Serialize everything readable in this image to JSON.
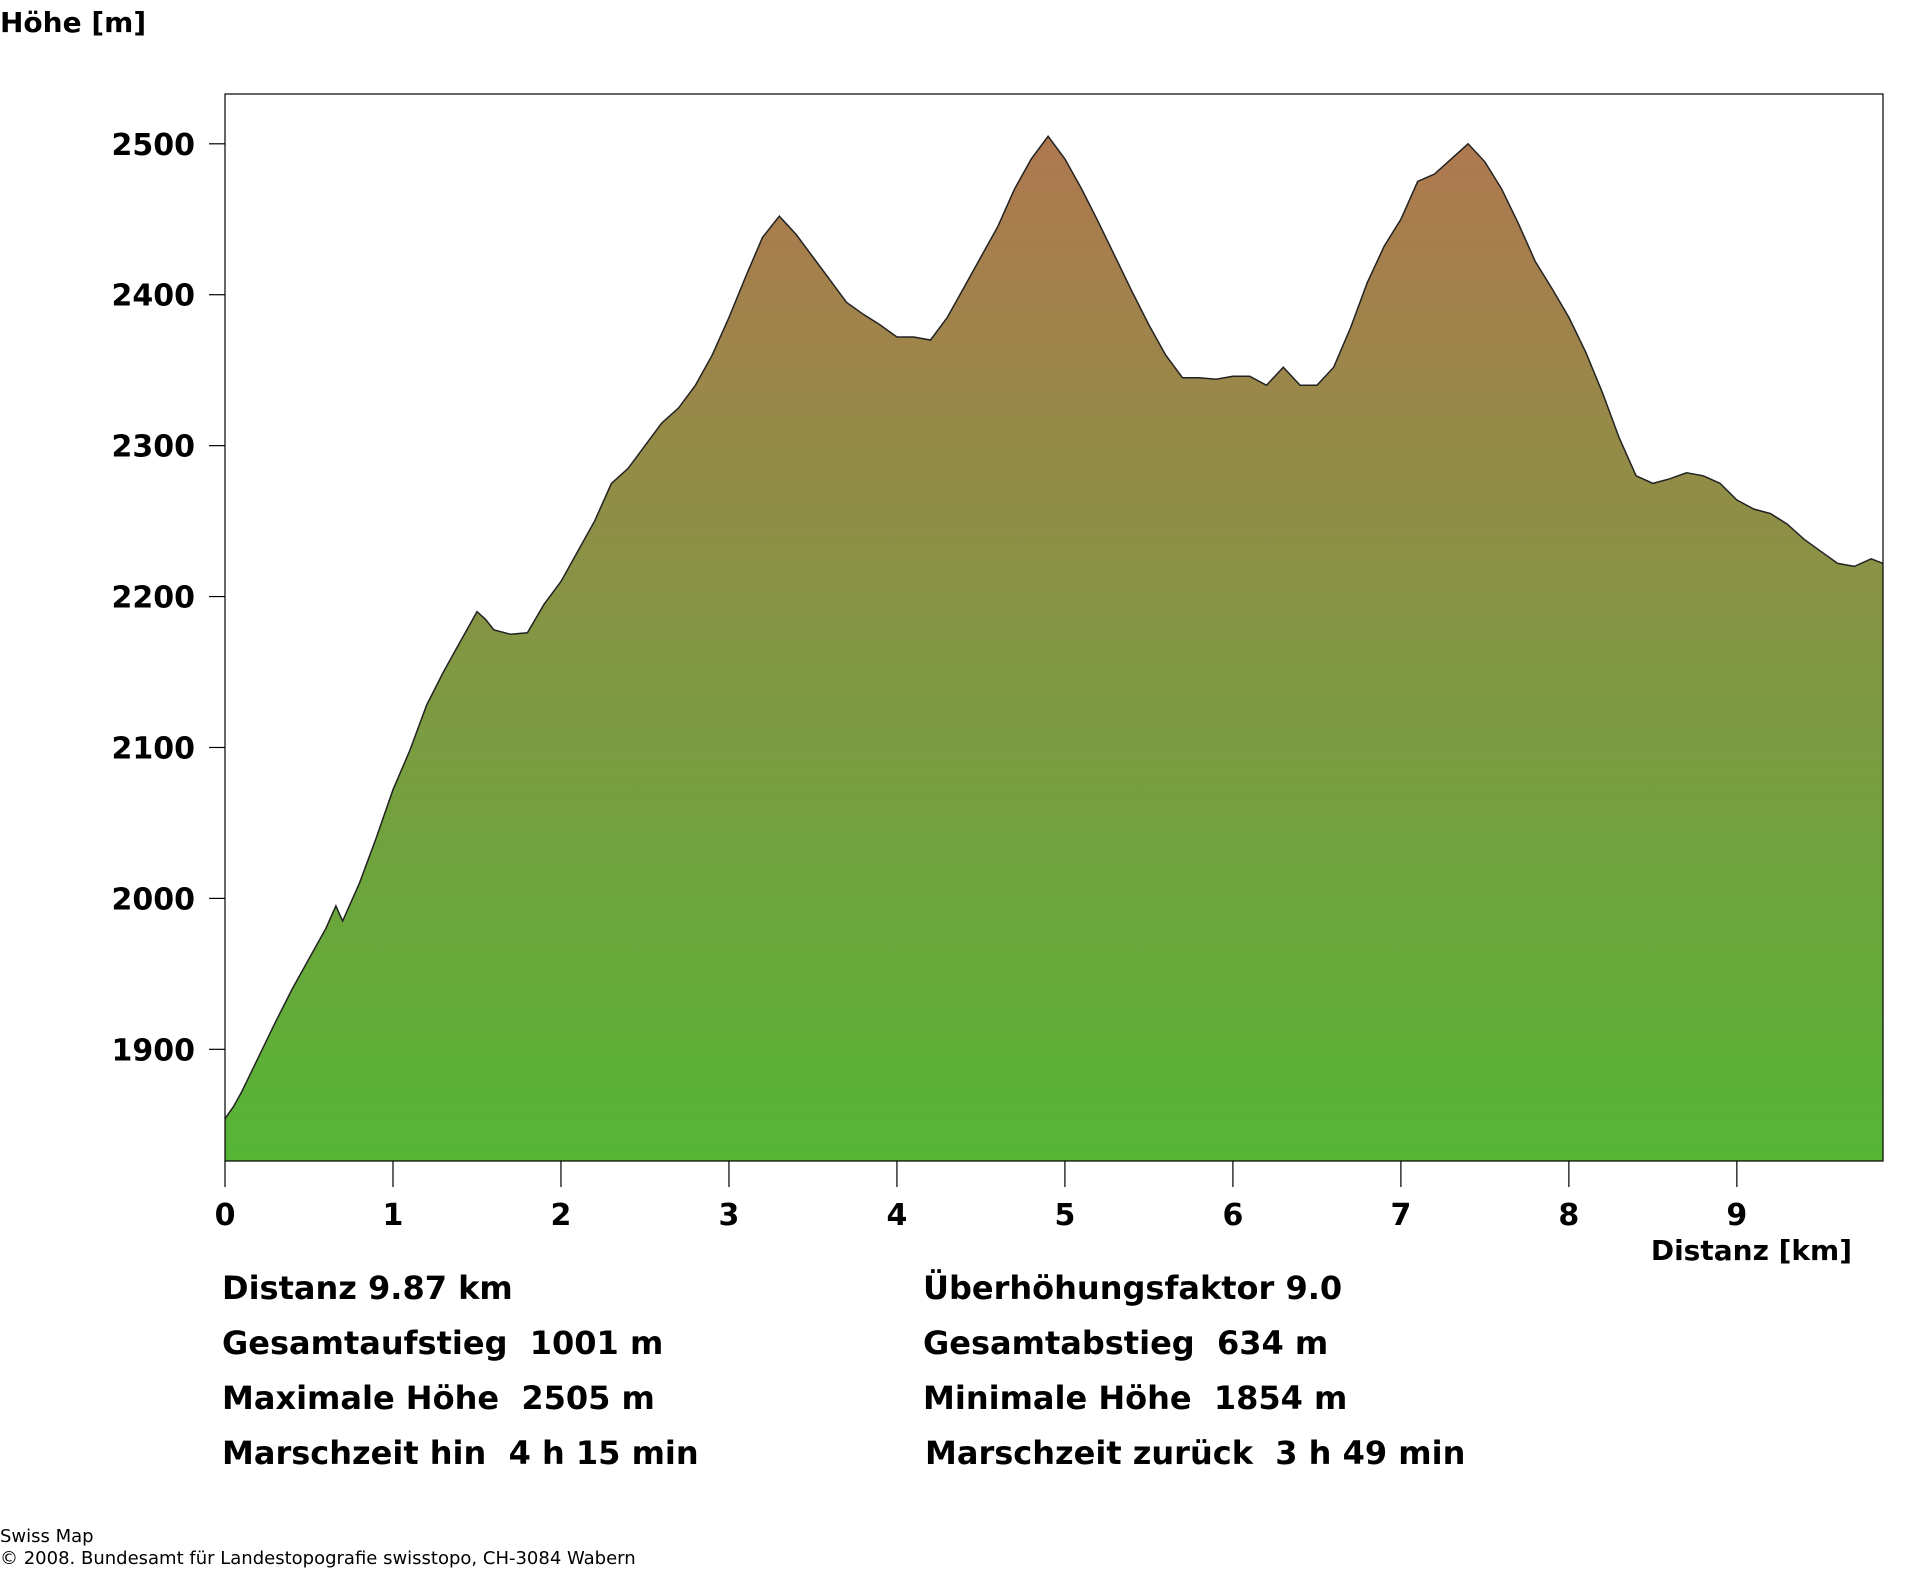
{
  "chart_data": {
    "type": "area",
    "title": "",
    "ylabel": "Höhe [m]",
    "xlabel": "Distanz [km]",
    "xlim": [
      0,
      9.87
    ],
    "ylim": [
      1826,
      2533
    ],
    "xticks": [
      0,
      1,
      2,
      3,
      4,
      5,
      6,
      7,
      8,
      9
    ],
    "yticks": [
      1900,
      2000,
      2100,
      2200,
      2300,
      2400,
      2500
    ],
    "grid": false,
    "fill_gradient": {
      "top": "#b07850",
      "bottom": "#55b535"
    },
    "series": [
      {
        "x": [
          0,
          0.05,
          0.1,
          0.2,
          0.3,
          0.4,
          0.5,
          0.6,
          0.66,
          0.7,
          0.8,
          0.9,
          1.0,
          1.1,
          1.2,
          1.3,
          1.4,
          1.5,
          1.55,
          1.6,
          1.7,
          1.8,
          1.9,
          2.0,
          2.1,
          2.2,
          2.3,
          2.4,
          2.5,
          2.6,
          2.7,
          2.8,
          2.9,
          3.0,
          3.1,
          3.2,
          3.3,
          3.4,
          3.5,
          3.6,
          3.7,
          3.8,
          3.9,
          4.0,
          4.1,
          4.2,
          4.3,
          4.4,
          4.5,
          4.6,
          4.7,
          4.8,
          4.9,
          5.0,
          5.1,
          5.2,
          5.3,
          5.4,
          5.5,
          5.6,
          5.7,
          5.8,
          5.9,
          6.0,
          6.1,
          6.2,
          6.3,
          6.4,
          6.5,
          6.6,
          6.7,
          6.8,
          6.9,
          7.0,
          7.1,
          7.2,
          7.3,
          7.4,
          7.5,
          7.6,
          7.7,
          7.8,
          7.9,
          8.0,
          8.1,
          8.2,
          8.3,
          8.4,
          8.5,
          8.6,
          8.7,
          8.8,
          8.9,
          9.0,
          9.1,
          9.2,
          9.3,
          9.4,
          9.5,
          9.6,
          9.7,
          9.8,
          9.87
        ],
        "y": [
          1854,
          1862,
          1872,
          1895,
          1918,
          1940,
          1960,
          1980,
          1995,
          1985,
          2010,
          2040,
          2072,
          2098,
          2128,
          2150,
          2170,
          2190,
          2185,
          2178,
          2175,
          2176,
          2195,
          2210,
          2230,
          2250,
          2275,
          2285,
          2300,
          2315,
          2325,
          2340,
          2360,
          2385,
          2412,
          2438,
          2452,
          2440,
          2425,
          2410,
          2395,
          2387,
          2380,
          2372,
          2372,
          2370,
          2385,
          2405,
          2425,
          2445,
          2470,
          2490,
          2505,
          2490,
          2470,
          2448,
          2425,
          2402,
          2380,
          2360,
          2345,
          2345,
          2344,
          2346,
          2346,
          2340,
          2352,
          2340,
          2340,
          2352,
          2378,
          2408,
          2432,
          2450,
          2475,
          2480,
          2490,
          2500,
          2488,
          2470,
          2447,
          2422,
          2404,
          2385,
          2362,
          2335,
          2305,
          2280,
          2275,
          2278,
          2282,
          2280,
          2275,
          2264,
          2258,
          2255,
          2248,
          2238,
          2230,
          2222,
          2220,
          2225,
          2222
        ]
      }
    ]
  },
  "stats": {
    "distance": "Distanz 9.87 km",
    "exaggeration": "Überhöhungsfaktor 9.0",
    "ascent": "Gesamtaufstieg  1001 m",
    "descent": "Gesamtabstieg  634 m",
    "max_elevation": "Maximale Höhe  2505 m",
    "min_elevation": "Minimale Höhe  1854 m",
    "time_out": "Marschzeit hin  4 h 15 min",
    "time_back": "Marschzeit zurück  3 h 49 min"
  },
  "footer": {
    "line1": "Swiss Map",
    "line2": "© 2008. Bundesamt für Landestopografie swisstopo, CH-3084 Wabern"
  }
}
